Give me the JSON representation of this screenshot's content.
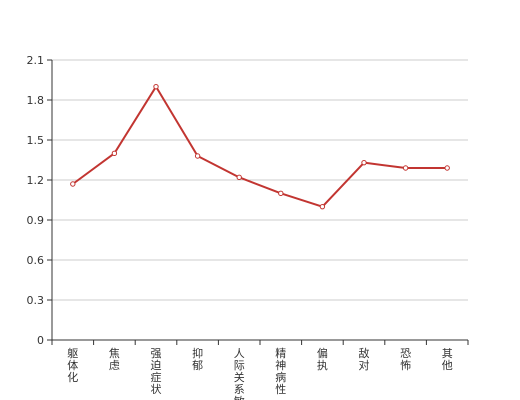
{
  "chart_data": {
    "type": "line",
    "categories": [
      "躯体化",
      "焦虑",
      "强迫症状",
      "抑郁",
      "人际关系敏感",
      "精神病性",
      "偏执",
      "敌对",
      "恐怖",
      "其他"
    ],
    "values": [
      1.17,
      1.4,
      1.9,
      1.38,
      1.22,
      1.1,
      1.0,
      1.33,
      1.29,
      1.29
    ],
    "y_ticks": [
      "0",
      "0.3",
      "0.6",
      "0.9",
      "1.2",
      "1.5",
      "1.8",
      "2.1"
    ],
    "ylim": [
      0,
      2.1
    ],
    "grid": true,
    "title": "",
    "xlabel": "",
    "ylabel": ""
  },
  "colors": {
    "line": "#c23531",
    "grid": "#cccccc",
    "axis": "#333333"
  }
}
